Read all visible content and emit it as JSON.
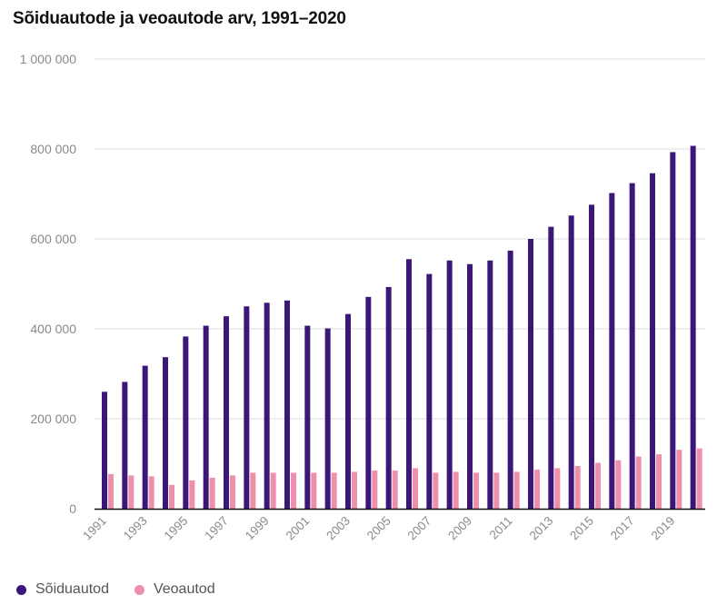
{
  "title": "Sõiduautode ja veoautode arv, 1991–2020",
  "chart_data": {
    "type": "bar",
    "title": "Sõiduautode ja veoautode arv, 1991–2020",
    "xlabel": "",
    "ylabel": "",
    "ylim": [
      0,
      1000000
    ],
    "yticks": [
      0,
      200000,
      400000,
      600000,
      800000,
      1000000
    ],
    "ytick_labels": [
      "0",
      "200 000",
      "400 000",
      "600 000",
      "800 000",
      "1 000 000"
    ],
    "grid": true,
    "legend_position": "bottom-left",
    "categories": [
      "1991",
      "1992",
      "1993",
      "1994",
      "1995",
      "1996",
      "1997",
      "1998",
      "1999",
      "2000",
      "2001",
      "2002",
      "2003",
      "2004",
      "2005",
      "2006",
      "2007",
      "2008",
      "2009",
      "2010",
      "2011",
      "2012",
      "2013",
      "2014",
      "2015",
      "2016",
      "2017",
      "2018",
      "2019",
      "2020"
    ],
    "xtick_labels": [
      "1991",
      "1993",
      "1995",
      "1997",
      "1999",
      "2001",
      "2003",
      "2005",
      "2007",
      "2009",
      "2011",
      "2013",
      "2015",
      "2017",
      "2019"
    ],
    "series": [
      {
        "name": "Sõiduautod",
        "color": "#3b1779",
        "values": [
          260000,
          282000,
          318000,
          337000,
          383000,
          407000,
          428000,
          450000,
          458000,
          463000,
          407000,
          401000,
          433000,
          471000,
          493000,
          555000,
          522000,
          552000,
          544000,
          552000,
          574000,
          600000,
          627000,
          652000,
          676000,
          702000,
          724000,
          746000,
          793000,
          807000
        ]
      },
      {
        "name": "Veoautod",
        "color": "#ee8fab",
        "values": [
          77000,
          74000,
          72000,
          53000,
          63000,
          69000,
          74000,
          80000,
          80000,
          80000,
          80000,
          80000,
          82000,
          85000,
          85000,
          90000,
          80000,
          82000,
          80000,
          80000,
          82000,
          87000,
          90000,
          95000,
          102000,
          108000,
          116000,
          121000,
          131000,
          134000
        ]
      }
    ]
  }
}
